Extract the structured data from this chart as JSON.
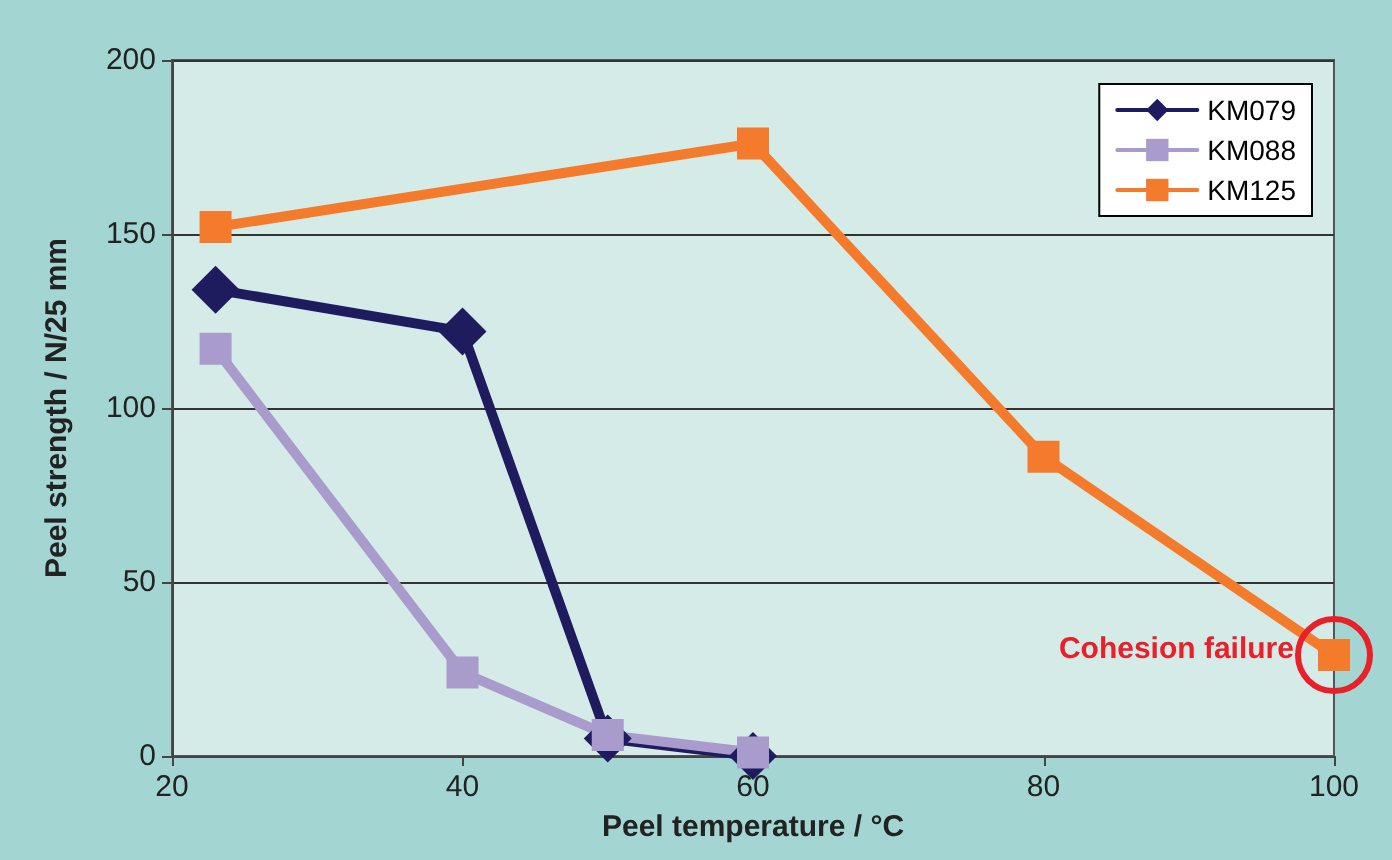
{
  "chart_data": {
    "type": "line",
    "xlabel": "Peel temperature / °C",
    "ylabel": "Peel strength / N/25 mm",
    "xlim": [
      20,
      100
    ],
    "xticks": [
      20,
      40,
      60,
      80,
      100
    ],
    "ylim": [
      0,
      200
    ],
    "yticks": [
      0,
      50,
      100,
      150,
      200
    ],
    "grid": "y",
    "legend": "top right",
    "line_style": "solid",
    "series": [
      {
        "name": "KM079",
        "color": "#1e1b5e",
        "marker": "diamond",
        "x": [
          23,
          40,
          50,
          60
        ],
        "values": [
          134,
          122,
          5,
          0
        ]
      },
      {
        "name": "KM088",
        "color": "#a99ccc",
        "marker": "square",
        "x": [
          23,
          40,
          50,
          60
        ],
        "values": [
          117,
          24,
          6,
          1
        ]
      },
      {
        "name": "KM125",
        "color": "#f47b2b",
        "marker": "square",
        "x": [
          23,
          60,
          80,
          100
        ],
        "values": [
          152,
          176,
          86,
          29
        ]
      }
    ],
    "annotations": [
      {
        "text": "Cohesion failure",
        "x": 100,
        "y": 29
      }
    ]
  }
}
